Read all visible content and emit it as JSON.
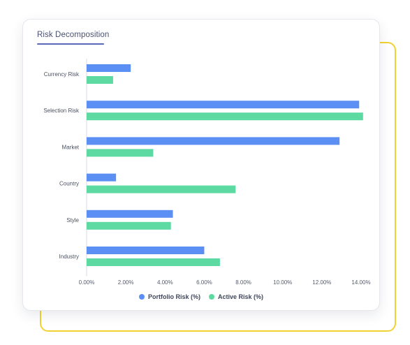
{
  "card": {
    "title": "Risk Decomposition"
  },
  "colors": {
    "portfolio": "#5b8ff3",
    "active": "#5dd9a2",
    "accent_frame": "#f2d232"
  },
  "chart_data": {
    "type": "bar",
    "orientation": "horizontal",
    "title": "Risk Decomposition",
    "categories": [
      "Currency Risk",
      "Selection Risk",
      "Market",
      "Country",
      "Style",
      "Industry"
    ],
    "series": [
      {
        "name": "Portfolio Risk (%)",
        "values": [
          2.25,
          13.9,
          12.9,
          1.5,
          4.4,
          6.0
        ]
      },
      {
        "name": "Active Risk (%)",
        "values": [
          1.35,
          14.1,
          3.4,
          7.6,
          4.3,
          6.8
        ]
      }
    ],
    "xlim": [
      0,
      14
    ],
    "xticks": [
      "0.00%",
      "2.00%",
      "4.00%",
      "6.00%",
      "8.00%",
      "10.00%",
      "12.00%",
      "14.00%"
    ],
    "grid": false,
    "legend_position": "bottom"
  }
}
